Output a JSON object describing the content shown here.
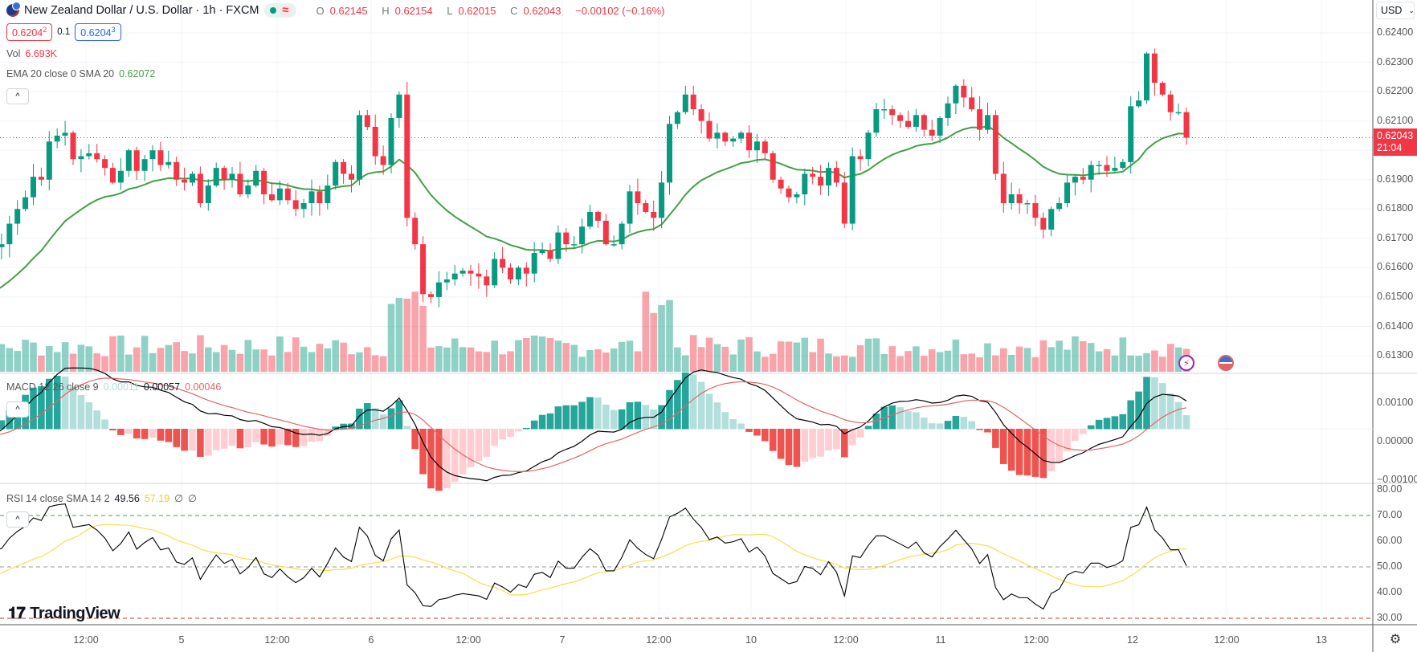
{
  "header": {
    "symbol_title": "New Zealand Dollar / U.S. Dollar · 1h · FXCM",
    "market_status_icon": "dot-icon",
    "ohlc": {
      "o_label": "O",
      "o": "0.62145",
      "h_label": "H",
      "h": "0.62154",
      "l_label": "L",
      "l": "0.62015",
      "c_label": "C",
      "c": "0.62043",
      "change": "−0.00102 (−0.16%)"
    },
    "sell_price": "0.62042",
    "sell_main": "0.6204",
    "sell_pip": "2",
    "spread": "0.1",
    "buy_main": "0.6204",
    "buy_pip": "3"
  },
  "indicators": {
    "volume": {
      "label": "Vol",
      "value": "6.693K"
    },
    "ema": {
      "label": "EMA 20 close 0 SMA 20",
      "value": "0.62072"
    },
    "macd": {
      "label": "MACD 12 26 close 9",
      "hist": "0.00011",
      "macd": "0.00057",
      "signal": "0.00046"
    },
    "rsi": {
      "label": "RSI 14 close SMA 14 2",
      "rsi": "49.56",
      "sma": "57.19",
      "extra1": "∅",
      "extra2": "∅"
    }
  },
  "price_axis": {
    "currency": "USD",
    "labels": [
      "0.62400",
      "0.62300",
      "0.62200",
      "0.62100",
      "0.61900",
      "0.61800",
      "0.61700",
      "0.61600",
      "0.61500",
      "0.61400",
      "0.61300"
    ],
    "last_price": "0.62043",
    "countdown": "21:04"
  },
  "macd_axis": {
    "labels": [
      "0.00100",
      "0.00000",
      "−0.00100"
    ]
  },
  "rsi_axis": {
    "labels": [
      "80.00",
      "70.00",
      "60.00",
      "50.00",
      "40.00",
      "30.00"
    ]
  },
  "time_axis": {
    "labels": [
      "12:00",
      "5",
      "12:00",
      "6",
      "12:00",
      "7",
      "12:00",
      "10",
      "12:00",
      "11",
      "12:00",
      "12",
      "12:00",
      "13"
    ]
  },
  "branding": {
    "logo_text": "TradingView"
  },
  "colors": {
    "up": "#089981",
    "down": "#f23645",
    "ema": "#43a047",
    "macd": "#000000",
    "signal": "#e06666",
    "rsi": "#000000",
    "rsi_sma": "#f5e04a"
  },
  "chart_data": {
    "type": "candlestick",
    "title": "New Zealand Dollar / U.S. Dollar · 1h · FXCM",
    "ylim": [
      0.6125,
      0.625
    ],
    "x_ticks": [
      "12:00",
      "5",
      "12:00",
      "6",
      "12:00",
      "7",
      "12:00",
      "10",
      "12:00",
      "11",
      "12:00",
      "12",
      "12:00",
      "13"
    ],
    "closes": [
      0.616,
      0.6156,
      0.6152,
      0.6159,
      0.615,
      0.6144,
      0.6152,
      0.6167,
      0.6168,
      0.6175,
      0.618,
      0.6184,
      0.6191,
      0.619,
      0.6203,
      0.6205,
      0.6206,
      0.6197,
      0.6198,
      0.6199,
      0.6197,
      0.6194,
      0.6189,
      0.6193,
      0.62,
      0.6193,
      0.6197,
      0.62,
      0.6195,
      0.6196,
      0.619,
      0.6189,
      0.6192,
      0.6182,
      0.6188,
      0.6194,
      0.619,
      0.6192,
      0.6185,
      0.6188,
      0.6193,
      0.6185,
      0.6183,
      0.6187,
      0.6183,
      0.618,
      0.6182,
      0.6186,
      0.6182,
      0.6188,
      0.6196,
      0.6192,
      0.619,
      0.6212,
      0.6208,
      0.6198,
      0.6195,
      0.6211,
      0.6219,
      0.6177,
      0.6168,
      0.6151,
      0.615,
      0.6155,
      0.6156,
      0.6158,
      0.6159,
      0.6158,
      0.6157,
      0.6154,
      0.6163,
      0.616,
      0.6156,
      0.616,
      0.6158,
      0.6165,
      0.6166,
      0.6163,
      0.6172,
      0.6168,
      0.6168,
      0.6174,
      0.6179,
      0.6176,
      0.6168,
      0.6168,
      0.6175,
      0.6186,
      0.6182,
      0.6179,
      0.6177,
      0.6189,
      0.6209,
      0.6213,
      0.6219,
      0.6214,
      0.621,
      0.6204,
      0.6206,
      0.6203,
      0.6204,
      0.6206,
      0.62,
      0.6203,
      0.6199,
      0.619,
      0.6187,
      0.6184,
      0.6185,
      0.6192,
      0.6191,
      0.6188,
      0.6194,
      0.6189,
      0.6175,
      0.6198,
      0.6197,
      0.6206,
      0.6214,
      0.6214,
      0.6212,
      0.621,
      0.6208,
      0.6212,
      0.6207,
      0.6205,
      0.6211,
      0.6216,
      0.6222,
      0.6218,
      0.6214,
      0.6207,
      0.6212,
      0.6192,
      0.6182,
      0.6185,
      0.6182,
      0.6182,
      0.6177,
      0.6173,
      0.618,
      0.6182,
      0.6189,
      0.6191,
      0.619,
      0.6195,
      0.6195,
      0.6193,
      0.6194,
      0.6196,
      0.6215,
      0.6217,
      0.6233,
      0.6223,
      0.6219,
      0.6213,
      0.6213,
      0.62043
    ],
    "ema20_last": 0.62072,
    "volume_last": "6.693K",
    "macd": {
      "macd_last": 0.00057,
      "signal_last": 0.00046,
      "hist_last": 0.00011,
      "ylim": [
        -0.0011,
        0.0013
      ]
    },
    "rsi": {
      "rsi_last": 49.56,
      "sma_last": 57.19,
      "levels": [
        70,
        50,
        30
      ],
      "ylim": [
        27,
        83
      ]
    }
  }
}
